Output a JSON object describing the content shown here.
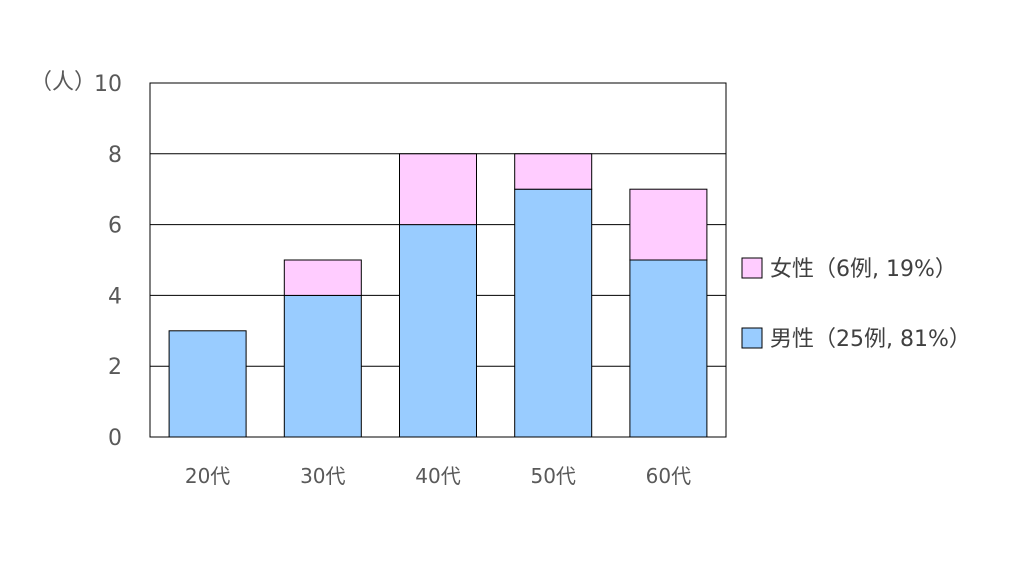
{
  "chart_data": {
    "type": "bar",
    "stacked": true,
    "categories": [
      "20代",
      "30代",
      "40代",
      "50代",
      "60代"
    ],
    "series": [
      {
        "name": "男性（25例, 81%）",
        "values": [
          3,
          4,
          6,
          7,
          5
        ],
        "color": "#99CCFF"
      },
      {
        "name": "女性（6例, 19%）",
        "values": [
          0,
          1,
          2,
          1,
          2
        ],
        "color": "#FFCCFF"
      }
    ],
    "y_unit_label": "（人）",
    "ylim": [
      0,
      10
    ],
    "yticks": [
      0,
      2,
      4,
      6,
      8,
      10
    ],
    "grid": true,
    "legend_position": "right",
    "border_color": "#000000",
    "grid_color": "#000000"
  }
}
